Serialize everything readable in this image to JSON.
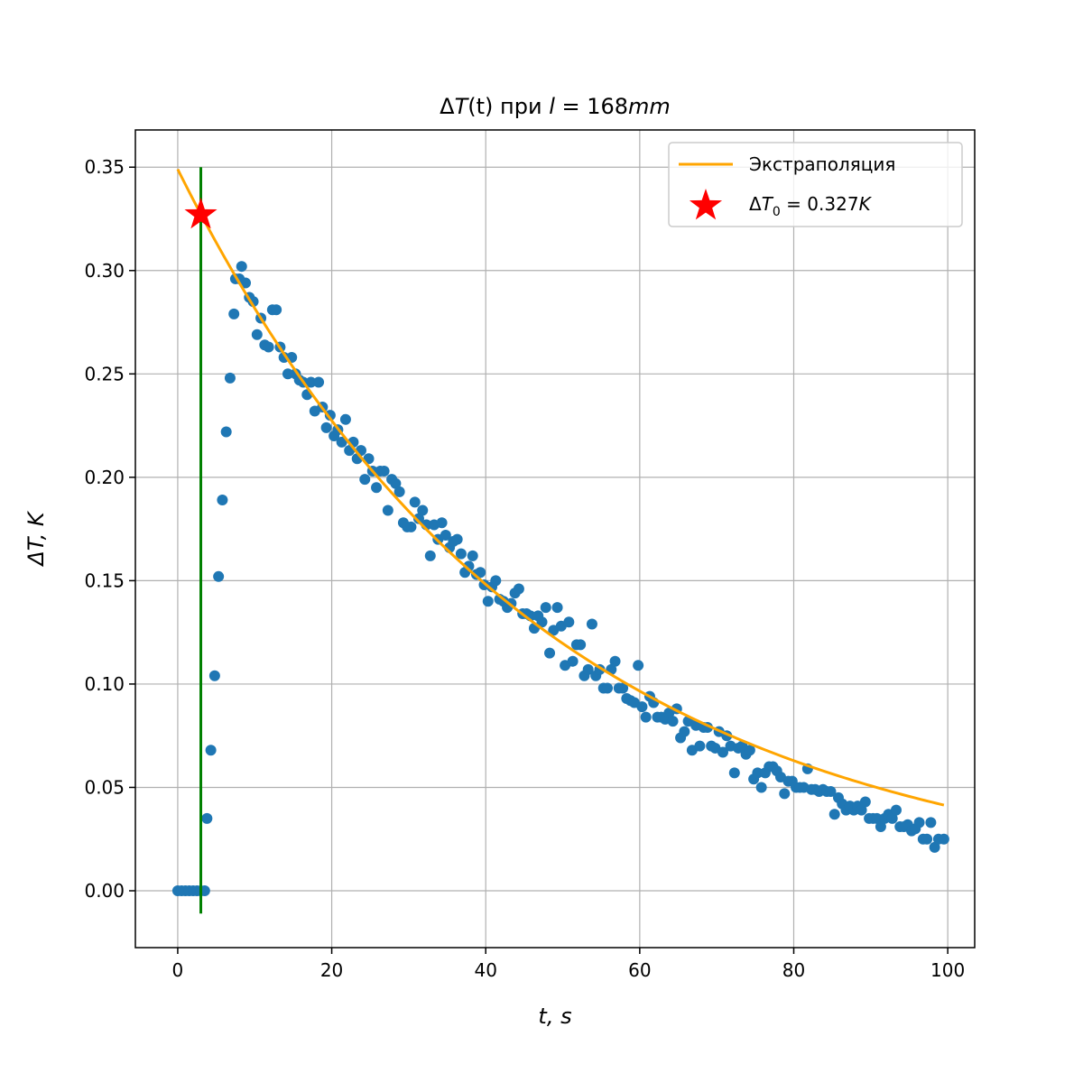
{
  "chart_data": {
    "type": "scatter",
    "title": {
      "prefix": "Δ",
      "var": "T",
      "arg": "(t)",
      "mid": " при ",
      "lvar": "l",
      "rest": " = 168",
      "unit": "mm"
    },
    "xlabel": "t, s",
    "ylabel": "ΔT, K",
    "xlim": [
      -5.5,
      103.5
    ],
    "ylim": [
      -0.0275,
      0.368
    ],
    "x_ticks": [
      0,
      20,
      40,
      60,
      80,
      100
    ],
    "y_ticks": [
      0.0,
      0.05,
      0.1,
      0.15,
      0.2,
      0.25,
      0.3,
      0.35
    ],
    "x_tick_labels": [
      "0",
      "20",
      "40",
      "60",
      "80",
      "100"
    ],
    "y_tick_labels": [
      "0.00",
      "0.05",
      "0.10",
      "0.15",
      "0.20",
      "0.25",
      "0.30",
      "0.35"
    ],
    "grid": true,
    "legend_position": "top-right",
    "colors": {
      "points": "#1f77b4",
      "fit": "#ffa500",
      "vline": "#008000",
      "star": "#ff0000",
      "grid": "#b0b0b0"
    },
    "series": [
      {
        "name": "Экстраполяция",
        "type": "line",
        "model": {
          "a": 0.349,
          "tau": 46.7
        },
        "x_range": [
          0,
          99.5
        ]
      },
      {
        "name_parts": {
          "d": "Δ",
          "v": "T",
          "sub": "0",
          "eq": " = 0.327",
          "unit": "K"
        },
        "type": "star",
        "x": 3.0,
        "y": 0.327
      },
      {
        "type": "vline",
        "x": 3.0,
        "y_range": [
          -0.011,
          0.35
        ]
      },
      {
        "type": "scatter",
        "points": [
          [
            0.0,
            0.0
          ],
          [
            0.5,
            0.0
          ],
          [
            1.0,
            0.0
          ],
          [
            1.5,
            0.0
          ],
          [
            2.0,
            0.0
          ],
          [
            2.5,
            0.0
          ],
          [
            3.0,
            0.0
          ],
          [
            3.5,
            0.0
          ],
          [
            3.8,
            0.035
          ],
          [
            4.3,
            0.068
          ],
          [
            4.8,
            0.104
          ],
          [
            5.3,
            0.152
          ],
          [
            5.8,
            0.189
          ],
          [
            6.3,
            0.222
          ],
          [
            6.8,
            0.248
          ],
          [
            7.3,
            0.279
          ],
          [
            7.5,
            0.296
          ],
          [
            8.0,
            0.296
          ],
          [
            8.3,
            0.302
          ],
          [
            8.8,
            0.294
          ],
          [
            9.3,
            0.287
          ],
          [
            9.8,
            0.285
          ],
          [
            10.3,
            0.269
          ],
          [
            10.8,
            0.277
          ],
          [
            11.3,
            0.264
          ],
          [
            11.8,
            0.263
          ],
          [
            12.3,
            0.281
          ],
          [
            12.8,
            0.281
          ],
          [
            13.3,
            0.263
          ],
          [
            13.8,
            0.258
          ],
          [
            14.3,
            0.25
          ],
          [
            14.8,
            0.258
          ],
          [
            15.3,
            0.25
          ],
          [
            15.8,
            0.247
          ],
          [
            16.3,
            0.246
          ],
          [
            16.8,
            0.24
          ],
          [
            17.3,
            0.246
          ],
          [
            17.8,
            0.232
          ],
          [
            18.3,
            0.246
          ],
          [
            18.8,
            0.234
          ],
          [
            19.3,
            0.224
          ],
          [
            19.8,
            0.23
          ],
          [
            20.3,
            0.22
          ],
          [
            20.8,
            0.223
          ],
          [
            21.3,
            0.217
          ],
          [
            21.8,
            0.228
          ],
          [
            22.3,
            0.213
          ],
          [
            22.8,
            0.217
          ],
          [
            23.3,
            0.209
          ],
          [
            23.8,
            0.213
          ],
          [
            24.3,
            0.199
          ],
          [
            24.8,
            0.209
          ],
          [
            25.3,
            0.203
          ],
          [
            25.8,
            0.195
          ],
          [
            26.3,
            0.203
          ],
          [
            26.8,
            0.203
          ],
          [
            27.3,
            0.184
          ],
          [
            27.8,
            0.199
          ],
          [
            28.3,
            0.197
          ],
          [
            28.8,
            0.193
          ],
          [
            29.3,
            0.178
          ],
          [
            29.8,
            0.176
          ],
          [
            30.3,
            0.176
          ],
          [
            30.8,
            0.188
          ],
          [
            31.3,
            0.18
          ],
          [
            31.8,
            0.184
          ],
          [
            32.3,
            0.177
          ],
          [
            32.8,
            0.162
          ],
          [
            33.3,
            0.177
          ],
          [
            33.8,
            0.17
          ],
          [
            34.3,
            0.178
          ],
          [
            34.8,
            0.172
          ],
          [
            35.3,
            0.166
          ],
          [
            35.8,
            0.169
          ],
          [
            36.3,
            0.17
          ],
          [
            36.8,
            0.163
          ],
          [
            37.3,
            0.154
          ],
          [
            37.8,
            0.157
          ],
          [
            38.3,
            0.162
          ],
          [
            38.8,
            0.153
          ],
          [
            39.3,
            0.154
          ],
          [
            39.8,
            0.148
          ],
          [
            40.3,
            0.14
          ],
          [
            40.8,
            0.147
          ],
          [
            41.3,
            0.15
          ],
          [
            41.8,
            0.141
          ],
          [
            42.3,
            0.14
          ],
          [
            42.8,
            0.137
          ],
          [
            43.3,
            0.139
          ],
          [
            43.8,
            0.144
          ],
          [
            44.3,
            0.146
          ],
          [
            44.8,
            0.134
          ],
          [
            45.3,
            0.134
          ],
          [
            45.8,
            0.133
          ],
          [
            46.3,
            0.127
          ],
          [
            46.8,
            0.133
          ],
          [
            47.3,
            0.13
          ],
          [
            47.8,
            0.137
          ],
          [
            48.3,
            0.115
          ],
          [
            48.8,
            0.126
          ],
          [
            49.3,
            0.137
          ],
          [
            49.8,
            0.128
          ],
          [
            50.3,
            0.109
          ],
          [
            50.8,
            0.13
          ],
          [
            51.3,
            0.111
          ],
          [
            51.8,
            0.119
          ],
          [
            52.3,
            0.119
          ],
          [
            52.8,
            0.104
          ],
          [
            53.3,
            0.107
          ],
          [
            53.8,
            0.129
          ],
          [
            54.3,
            0.104
          ],
          [
            54.8,
            0.107
          ],
          [
            55.3,
            0.098
          ],
          [
            55.8,
            0.098
          ],
          [
            56.3,
            0.107
          ],
          [
            56.8,
            0.111
          ],
          [
            57.3,
            0.098
          ],
          [
            57.8,
            0.098
          ],
          [
            58.3,
            0.093
          ],
          [
            58.8,
            0.092
          ],
          [
            59.3,
            0.091
          ],
          [
            59.8,
            0.109
          ],
          [
            60.3,
            0.089
          ],
          [
            60.8,
            0.084
          ],
          [
            61.3,
            0.094
          ],
          [
            61.8,
            0.091
          ],
          [
            62.3,
            0.084
          ],
          [
            62.8,
            0.084
          ],
          [
            63.3,
            0.083
          ],
          [
            63.8,
            0.086
          ],
          [
            64.3,
            0.082
          ],
          [
            64.8,
            0.088
          ],
          [
            65.3,
            0.074
          ],
          [
            65.8,
            0.077
          ],
          [
            66.3,
            0.082
          ],
          [
            66.8,
            0.068
          ],
          [
            67.3,
            0.08
          ],
          [
            67.8,
            0.07
          ],
          [
            68.3,
            0.079
          ],
          [
            68.8,
            0.079
          ],
          [
            69.3,
            0.07
          ],
          [
            69.8,
            0.069
          ],
          [
            70.3,
            0.077
          ],
          [
            70.8,
            0.067
          ],
          [
            71.3,
            0.075
          ],
          [
            71.8,
            0.07
          ],
          [
            72.3,
            0.057
          ],
          [
            72.8,
            0.069
          ],
          [
            73.3,
            0.07
          ],
          [
            73.8,
            0.066
          ],
          [
            74.3,
            0.068
          ],
          [
            74.8,
            0.054
          ],
          [
            75.3,
            0.057
          ],
          [
            75.8,
            0.05
          ],
          [
            76.3,
            0.057
          ],
          [
            76.8,
            0.06
          ],
          [
            77.3,
            0.06
          ],
          [
            77.8,
            0.058
          ],
          [
            78.3,
            0.055
          ],
          [
            78.8,
            0.047
          ],
          [
            79.3,
            0.053
          ],
          [
            79.8,
            0.053
          ],
          [
            80.3,
            0.05
          ],
          [
            80.8,
            0.05
          ],
          [
            81.3,
            0.05
          ],
          [
            81.8,
            0.059
          ],
          [
            82.3,
            0.049
          ],
          [
            82.8,
            0.049
          ],
          [
            83.3,
            0.048
          ],
          [
            83.8,
            0.049
          ],
          [
            84.3,
            0.048
          ],
          [
            84.8,
            0.048
          ],
          [
            85.3,
            0.037
          ],
          [
            85.8,
            0.045
          ],
          [
            86.3,
            0.042
          ],
          [
            86.8,
            0.039
          ],
          [
            87.3,
            0.041
          ],
          [
            87.8,
            0.039
          ],
          [
            88.3,
            0.041
          ],
          [
            88.8,
            0.039
          ],
          [
            89.3,
            0.043
          ],
          [
            89.8,
            0.035
          ],
          [
            90.3,
            0.035
          ],
          [
            90.8,
            0.035
          ],
          [
            91.3,
            0.031
          ],
          [
            91.8,
            0.035
          ],
          [
            92.3,
            0.037
          ],
          [
            92.8,
            0.035
          ],
          [
            93.3,
            0.039
          ],
          [
            93.8,
            0.031
          ],
          [
            94.3,
            0.031
          ],
          [
            94.8,
            0.032
          ],
          [
            95.3,
            0.029
          ],
          [
            95.8,
            0.03
          ],
          [
            96.3,
            0.033
          ],
          [
            96.8,
            0.025
          ],
          [
            97.3,
            0.025
          ],
          [
            97.8,
            0.033
          ],
          [
            98.3,
            0.021
          ],
          [
            98.8,
            0.025
          ],
          [
            99.5,
            0.025
          ]
        ]
      }
    ]
  }
}
